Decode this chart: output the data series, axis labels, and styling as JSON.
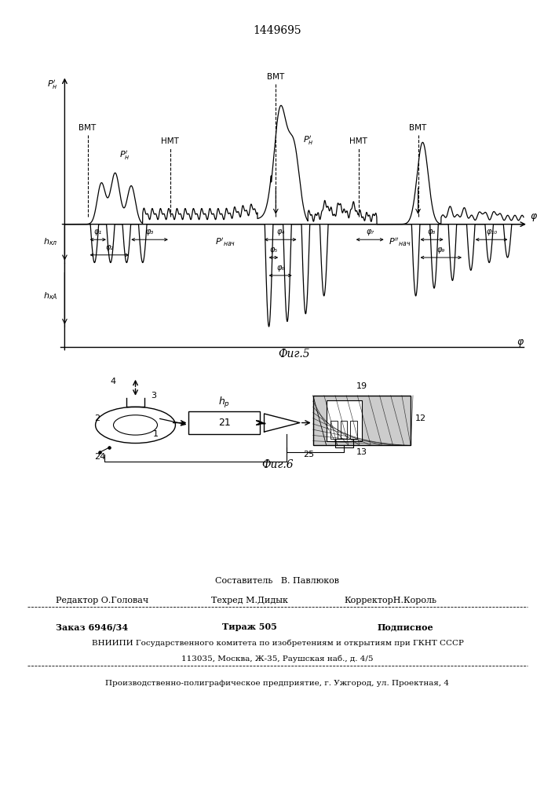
{
  "patent_number": "1449695",
  "fig5_label": "Фиг.5",
  "fig6_label": "Фиг.6",
  "background_color": "#ffffff",
  "footer_line1": "Составитель   В. Павлюков",
  "footer_line2a": "Редактор О.Головач",
  "footer_line2b": "Техред М.Дидык",
  "footer_line2c": "КорректорН.Король",
  "footer_line3a": "Заказ 6946/34",
  "footer_line3b": "Тираж 505",
  "footer_line3c": "Подписное",
  "footer_line4": "ВНИИПИ Государственного комитета по изобретениям и открытиям при ГКНТ СССР",
  "footer_line5": "113035, Москва, Ж-35, Раушская наб., д. 4/5",
  "footer_line6": "Производственно-полиграфическое предприятие, г. Ужгород, ул. Проектная, 4"
}
